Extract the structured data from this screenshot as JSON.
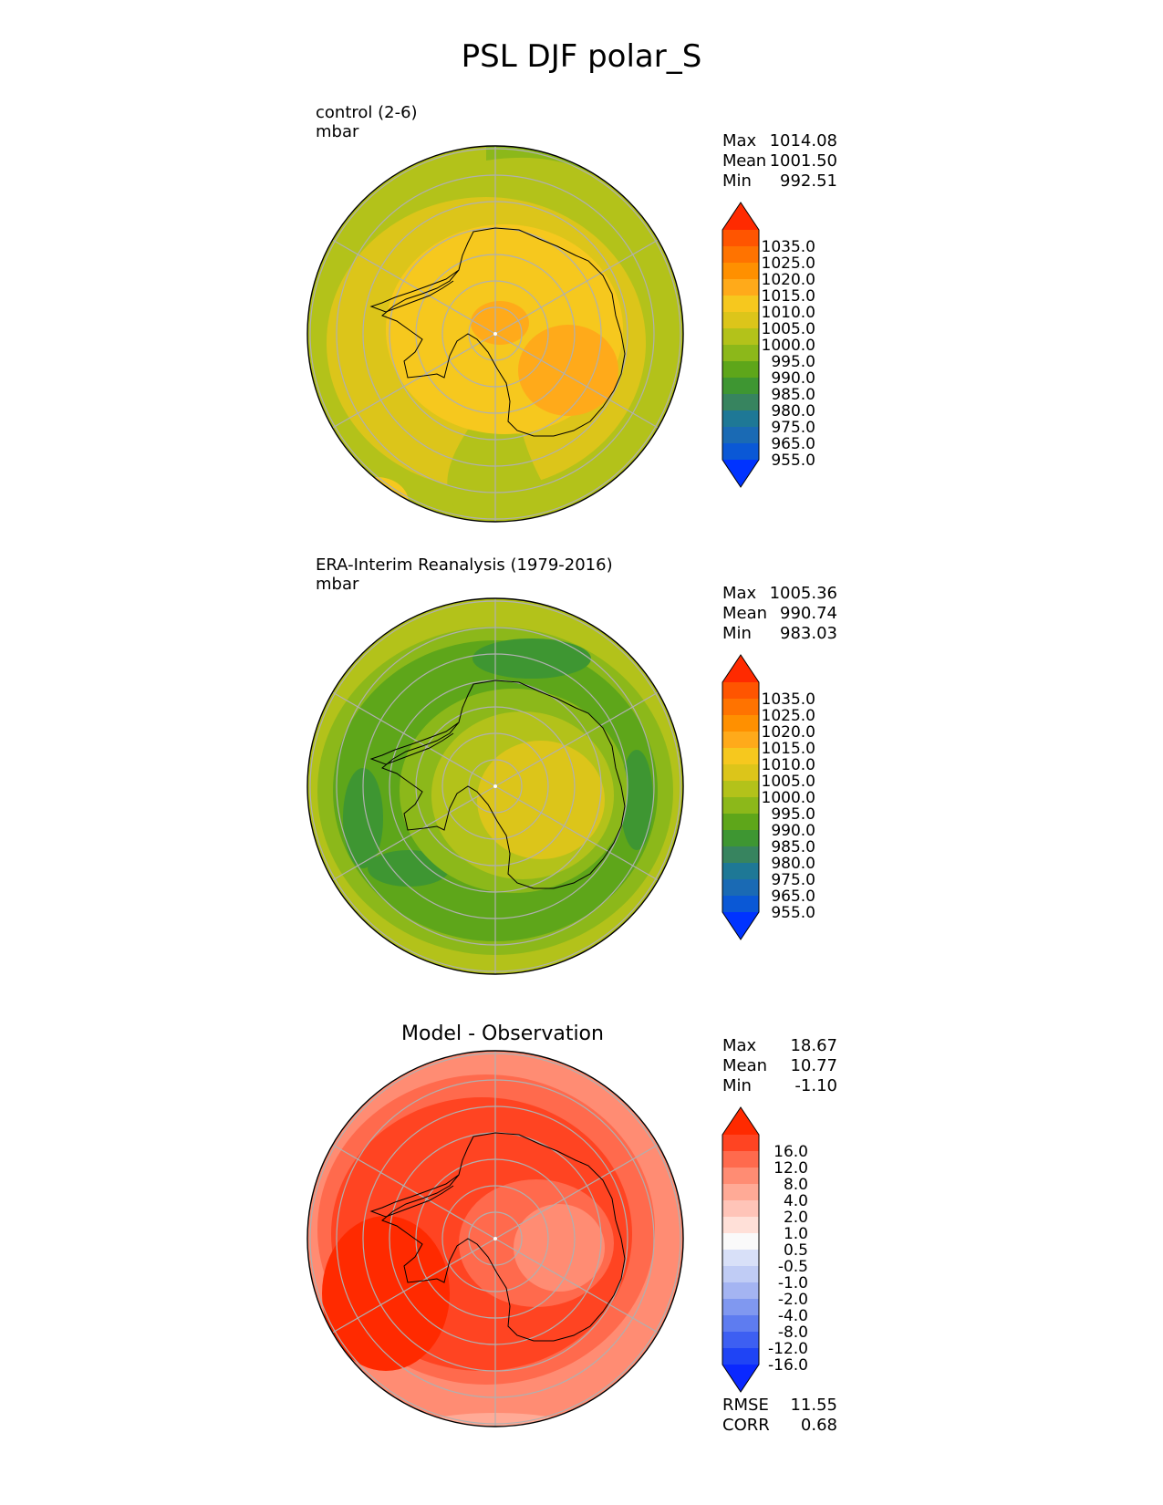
{
  "title": "PSL DJF polar_S",
  "panels": [
    {
      "name": "control (2-6)",
      "units": "mbar",
      "stats": {
        "max_label": "Max",
        "max": "1014.08",
        "mean_label": "Mean",
        "mean": "1001.50",
        "min_label": "Min",
        "min": "992.51"
      }
    },
    {
      "name": "ERA-Interim Reanalysis (1979-2016)",
      "units": "mbar",
      "stats": {
        "max_label": "Max",
        "max": "1005.36",
        "mean_label": "Mean",
        "mean": "990.74",
        "min_label": "Min",
        "min": "983.03"
      }
    },
    {
      "name": "Model - Observation",
      "stats": {
        "max_label": "Max",
        "max": "18.67",
        "mean_label": "Mean",
        "mean": "10.77",
        "min_label": "Min",
        "min": "-1.10"
      },
      "metrics": {
        "rmse_label": "RMSE",
        "rmse": "11.55",
        "corr_label": "CORR",
        "corr": "0.68"
      }
    }
  ],
  "colorbar_psl": {
    "labels": [
      "1035.0",
      "1025.0",
      "1020.0",
      "1015.0",
      "1010.0",
      "1005.0",
      "1000.0",
      "995.0",
      "990.0",
      "985.0",
      "980.0",
      "975.0",
      "965.0",
      "955.0"
    ],
    "colors": [
      "#ff2a00",
      "#ff5500",
      "#ff7300",
      "#ff9000",
      "#ffaa1a",
      "#f6c81e",
      "#dcc51a",
      "#b3c21a",
      "#8cb81a",
      "#5ea61a",
      "#3e9632",
      "#37845f",
      "#1e7896",
      "#1a6ab4",
      "#0a58d6",
      "#0033ff"
    ]
  },
  "colorbar_diff": {
    "labels": [
      "16.0",
      "12.0",
      "8.0",
      "4.0",
      "2.0",
      "1.0",
      "0.5",
      "-0.5",
      "-1.0",
      "-2.0",
      "-4.0",
      "-8.0",
      "-12.0",
      "-16.0"
    ],
    "colors": [
      "#ff2a00",
      "#ff4422",
      "#ff6a4d",
      "#ff8c73",
      "#ffaa96",
      "#ffc4b8",
      "#ffe0d8",
      "#fafafa",
      "#d8e0f8",
      "#c0ccf5",
      "#a4b4f2",
      "#8098f0",
      "#5e7cf0",
      "#3d5ff2",
      "#1f44f5",
      "#0a28ff"
    ]
  },
  "map_colors": {
    "control": {
      "outer": "#b3c21a",
      "ring": "#dcc51a",
      "inner": "#f6c81e",
      "core": "#ffaa1a",
      "edge": "#8cb81a"
    },
    "obs": {
      "outer": "#b3c21a",
      "ring": "#8cb81a",
      "band": "#5ea61a",
      "inner": "#b3c21a",
      "core": "#dcc51a",
      "dark": "#3e9632"
    },
    "diff": {
      "outer": "#ff8c73",
      "ring": "#ff6a4d",
      "inner": "#ff4422",
      "core": "#ff8c73",
      "hot": "#ff2a00",
      "rim": "#ffaa96"
    }
  }
}
